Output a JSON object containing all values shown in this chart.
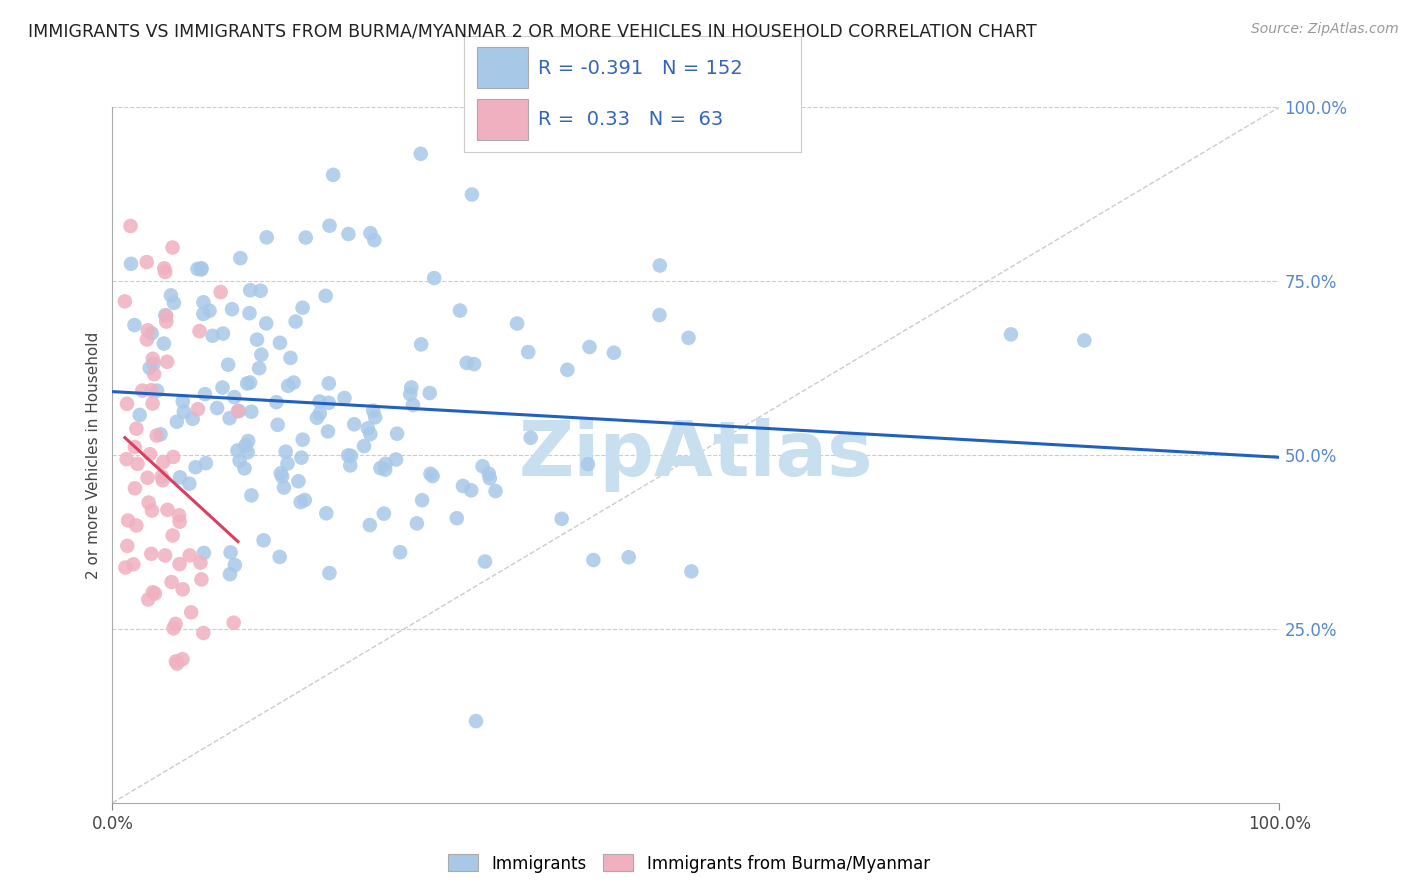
{
  "title": "IMMIGRANTS VS IMMIGRANTS FROM BURMA/MYANMAR 2 OR MORE VEHICLES IN HOUSEHOLD CORRELATION CHART",
  "source": "Source: ZipAtlas.com",
  "ylabel": "2 or more Vehicles in Household",
  "xlim": [
    0.0,
    1.0
  ],
  "ylim": [
    0.0,
    1.0
  ],
  "xtick_positions": [
    0.0,
    1.0
  ],
  "xtick_labels": [
    "0.0%",
    "100.0%"
  ],
  "ytick_positions": [],
  "right_ytick_positions": [
    0.0,
    0.25,
    0.5,
    0.75,
    1.0
  ],
  "right_ytick_labels": [
    "",
    "25.0%",
    "50.0%",
    "75.0%",
    "100.0%"
  ],
  "blue_R": -0.391,
  "blue_N": 152,
  "pink_R": 0.33,
  "pink_N": 63,
  "blue_color": "#a8c8e8",
  "pink_color": "#f0b0c0",
  "blue_line_color": "#2060c0",
  "pink_line_color": "#d84060",
  "watermark": "ZipAtlas",
  "watermark_color": "#c8dff0",
  "legend_label_blue": "Immigrants",
  "legend_label_pink": "Immigrants from Burma/Myanmar",
  "blue_seed": 42,
  "pink_seed": 7
}
